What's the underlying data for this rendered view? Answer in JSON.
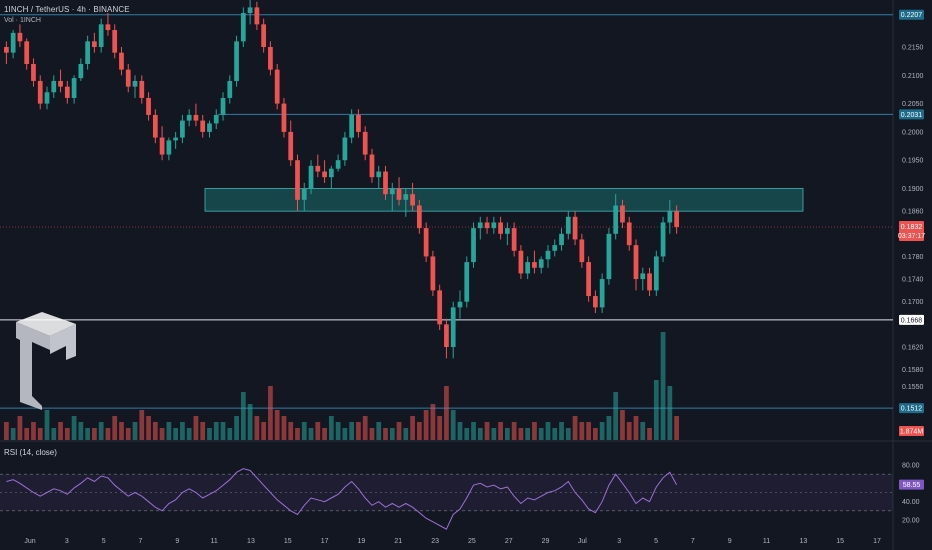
{
  "header": {
    "symbol_line": "1INCH / TetherUS · 4h · BINANCE",
    "volume_line": "Vol · 1INCH"
  },
  "rsi_panel": {
    "label": "RSI (14, close)",
    "levels": [
      "80.00",
      "40.00",
      "20.00"
    ],
    "current": "58.55"
  },
  "colors": {
    "background": "#131722",
    "up": "#26a69a",
    "down": "#ef5350",
    "level_line": "#2f7ea8",
    "zone_fill": "#1a6b6b",
    "rsi_line": "#9c6fd6"
  },
  "chart_data": {
    "type": "candlestick",
    "price_axis": {
      "ticks": [
        "0.2150",
        "0.2100",
        "0.2050",
        "0.2000",
        "0.1950",
        "0.1900",
        "0.1860",
        "0.1780",
        "0.1740",
        "0.1700",
        "0.1620",
        "0.1580",
        "0.1550"
      ],
      "ylim": [
        0.154,
        0.224
      ]
    },
    "date_axis": {
      "ticks": [
        "Jun",
        "3",
        "5",
        "7",
        "9",
        "11",
        "13",
        "15",
        "17",
        "19",
        "21",
        "23",
        "25",
        "27",
        "29",
        "Jul",
        "3",
        "5",
        "7",
        "9",
        "11",
        "13",
        "15",
        "17"
      ]
    },
    "horizontal_levels": [
      {
        "price": 0.2207,
        "label": "0.2207",
        "kind": "resistance"
      },
      {
        "price": 0.2031,
        "label": "0.2031",
        "kind": "resistance"
      },
      {
        "price": 0.1668,
        "label": "0.1668",
        "kind": "support"
      },
      {
        "price": 0.1512,
        "label": "0.1512",
        "kind": "support"
      }
    ],
    "zone": {
      "low": 0.186,
      "high": 0.19
    },
    "current_price": {
      "label": "0.1832",
      "countdown": "03:37:17"
    },
    "volume_label": "1.874M",
    "candles": [
      [
        0.215,
        0.216,
        0.212,
        0.214
      ],
      [
        0.214,
        0.218,
        0.213,
        0.2175
      ],
      [
        0.2175,
        0.219,
        0.215,
        0.216
      ],
      [
        0.216,
        0.2165,
        0.211,
        0.212
      ],
      [
        0.212,
        0.213,
        0.208,
        0.209
      ],
      [
        0.209,
        0.21,
        0.204,
        0.205
      ],
      [
        0.205,
        0.208,
        0.204,
        0.207
      ],
      [
        0.207,
        0.21,
        0.206,
        0.209
      ],
      [
        0.209,
        0.211,
        0.207,
        0.208
      ],
      [
        0.208,
        0.209,
        0.205,
        0.206
      ],
      [
        0.206,
        0.21,
        0.205,
        0.2095
      ],
      [
        0.2095,
        0.213,
        0.209,
        0.212
      ],
      [
        0.212,
        0.217,
        0.211,
        0.216
      ],
      [
        0.216,
        0.2175,
        0.214,
        0.215
      ],
      [
        0.215,
        0.22,
        0.214,
        0.219
      ],
      [
        0.219,
        0.221,
        0.217,
        0.218
      ],
      [
        0.218,
        0.219,
        0.213,
        0.214
      ],
      [
        0.214,
        0.215,
        0.21,
        0.211
      ],
      [
        0.211,
        0.212,
        0.207,
        0.208
      ],
      [
        0.208,
        0.21,
        0.206,
        0.209
      ],
      [
        0.209,
        0.21,
        0.205,
        0.206
      ],
      [
        0.206,
        0.207,
        0.202,
        0.203
      ],
      [
        0.203,
        0.204,
        0.198,
        0.199
      ],
      [
        0.199,
        0.201,
        0.195,
        0.196
      ],
      [
        0.196,
        0.199,
        0.195,
        0.1985
      ],
      [
        0.1985,
        0.2,
        0.197,
        0.199
      ],
      [
        0.199,
        0.203,
        0.198,
        0.202
      ],
      [
        0.202,
        0.204,
        0.201,
        0.203
      ],
      [
        0.203,
        0.205,
        0.201,
        0.202
      ],
      [
        0.202,
        0.203,
        0.199,
        0.2
      ],
      [
        0.2,
        0.202,
        0.199,
        0.2015
      ],
      [
        0.2015,
        0.204,
        0.2005,
        0.203
      ],
      [
        0.203,
        0.207,
        0.202,
        0.206
      ],
      [
        0.206,
        0.21,
        0.205,
        0.209
      ],
      [
        0.209,
        0.217,
        0.208,
        0.216
      ],
      [
        0.216,
        0.222,
        0.215,
        0.221
      ],
      [
        0.221,
        0.224,
        0.219,
        0.222
      ],
      [
        0.222,
        0.223,
        0.218,
        0.219
      ],
      [
        0.219,
        0.22,
        0.214,
        0.215
      ],
      [
        0.215,
        0.216,
        0.21,
        0.211
      ],
      [
        0.211,
        0.212,
        0.204,
        0.205
      ],
      [
        0.205,
        0.206,
        0.199,
        0.2
      ],
      [
        0.2,
        0.202,
        0.194,
        0.195
      ],
      [
        0.195,
        0.196,
        0.186,
        0.188
      ],
      [
        0.188,
        0.191,
        0.186,
        0.19
      ],
      [
        0.19,
        0.195,
        0.189,
        0.194
      ],
      [
        0.194,
        0.196,
        0.192,
        0.193
      ],
      [
        0.193,
        0.195,
        0.191,
        0.192
      ],
      [
        0.192,
        0.194,
        0.19,
        0.1935
      ],
      [
        0.1935,
        0.196,
        0.193,
        0.195
      ],
      [
        0.195,
        0.2,
        0.194,
        0.199
      ],
      [
        0.199,
        0.204,
        0.198,
        0.203
      ],
      [
        0.203,
        0.204,
        0.199,
        0.2
      ],
      [
        0.2,
        0.201,
        0.195,
        0.196
      ],
      [
        0.196,
        0.197,
        0.191,
        0.192
      ],
      [
        0.192,
        0.194,
        0.19,
        0.193
      ],
      [
        0.193,
        0.194,
        0.188,
        0.189
      ],
      [
        0.189,
        0.191,
        0.186,
        0.19
      ],
      [
        0.19,
        0.192,
        0.187,
        0.188
      ],
      [
        0.188,
        0.19,
        0.185,
        0.189
      ],
      [
        0.189,
        0.191,
        0.186,
        0.187
      ],
      [
        0.187,
        0.188,
        0.182,
        0.183
      ],
      [
        0.183,
        0.184,
        0.177,
        0.178
      ],
      [
        0.178,
        0.179,
        0.171,
        0.172
      ],
      [
        0.172,
        0.173,
        0.165,
        0.166
      ],
      [
        0.166,
        0.167,
        0.16,
        0.162
      ],
      [
        0.162,
        0.17,
        0.16,
        0.169
      ],
      [
        0.169,
        0.172,
        0.167,
        0.17
      ],
      [
        0.17,
        0.178,
        0.169,
        0.177
      ],
      [
        0.177,
        0.184,
        0.176,
        0.183
      ],
      [
        0.183,
        0.185,
        0.181,
        0.184
      ],
      [
        0.184,
        0.185,
        0.182,
        0.183
      ],
      [
        0.183,
        0.185,
        0.182,
        0.184
      ],
      [
        0.184,
        0.185,
        0.181,
        0.182
      ],
      [
        0.182,
        0.184,
        0.18,
        0.183
      ],
      [
        0.183,
        0.184,
        0.178,
        0.179
      ],
      [
        0.179,
        0.18,
        0.174,
        0.175
      ],
      [
        0.175,
        0.178,
        0.174,
        0.177
      ],
      [
        0.177,
        0.179,
        0.175,
        0.176
      ],
      [
        0.176,
        0.178,
        0.175,
        0.1775
      ],
      [
        0.1775,
        0.18,
        0.176,
        0.179
      ],
      [
        0.179,
        0.181,
        0.178,
        0.18
      ],
      [
        0.18,
        0.183,
        0.179,
        0.182
      ],
      [
        0.182,
        0.186,
        0.181,
        0.185
      ],
      [
        0.185,
        0.186,
        0.18,
        0.181
      ],
      [
        0.181,
        0.182,
        0.176,
        0.177
      ],
      [
        0.177,
        0.178,
        0.17,
        0.171
      ],
      [
        0.171,
        0.172,
        0.168,
        0.169
      ],
      [
        0.169,
        0.175,
        0.168,
        0.174
      ],
      [
        0.174,
        0.183,
        0.173,
        0.182
      ],
      [
        0.182,
        0.189,
        0.181,
        0.187
      ],
      [
        0.187,
        0.188,
        0.183,
        0.184
      ],
      [
        0.184,
        0.185,
        0.179,
        0.18
      ],
      [
        0.18,
        0.181,
        0.172,
        0.174
      ],
      [
        0.174,
        0.176,
        0.172,
        0.175
      ],
      [
        0.175,
        0.176,
        0.171,
        0.172
      ],
      [
        0.172,
        0.179,
        0.171,
        0.178
      ],
      [
        0.178,
        0.185,
        0.177,
        0.184
      ],
      [
        0.184,
        0.188,
        0.182,
        0.186
      ],
      [
        0.186,
        0.187,
        0.182,
        0.1832
      ]
    ],
    "volume": [
      3,
      2,
      4,
      2,
      3,
      2,
      5,
      2,
      3,
      2,
      4,
      3,
      2,
      2,
      3,
      2,
      4,
      3,
      2,
      3,
      5,
      4,
      3,
      2,
      3,
      2,
      3,
      2,
      4,
      3,
      2,
      3,
      3,
      2,
      4,
      8,
      6,
      4,
      3,
      9,
      5,
      4,
      3,
      2,
      3,
      2,
      3,
      2,
      4,
      3,
      2,
      3,
      3,
      4,
      2,
      3,
      2,
      2,
      3,
      2,
      4,
      3,
      5,
      6,
      4,
      9,
      5,
      3,
      2,
      3,
      2,
      3,
      2,
      3,
      2,
      3,
      2,
      2,
      3,
      2,
      3,
      2,
      3,
      2,
      4,
      3,
      3,
      2,
      3,
      4,
      8,
      5,
      3,
      4,
      3,
      2,
      10,
      18,
      9,
      4
    ],
    "rsi": [
      62,
      64,
      60,
      55,
      50,
      46,
      50,
      54,
      52,
      48,
      55,
      60,
      66,
      62,
      68,
      66,
      58,
      52,
      46,
      50,
      46,
      40,
      34,
      30,
      38,
      42,
      50,
      54,
      50,
      44,
      48,
      52,
      58,
      64,
      72,
      76,
      74,
      66,
      58,
      50,
      42,
      36,
      30,
      26,
      36,
      44,
      42,
      40,
      44,
      48,
      56,
      62,
      54,
      44,
      36,
      40,
      34,
      38,
      34,
      38,
      34,
      28,
      22,
      18,
      14,
      10,
      26,
      32,
      44,
      58,
      60,
      56,
      58,
      54,
      56,
      46,
      38,
      44,
      42,
      46,
      50,
      52,
      56,
      62,
      50,
      42,
      32,
      28,
      40,
      58,
      70,
      60,
      50,
      38,
      44,
      40,
      56,
      66,
      72,
      58.55
    ]
  }
}
